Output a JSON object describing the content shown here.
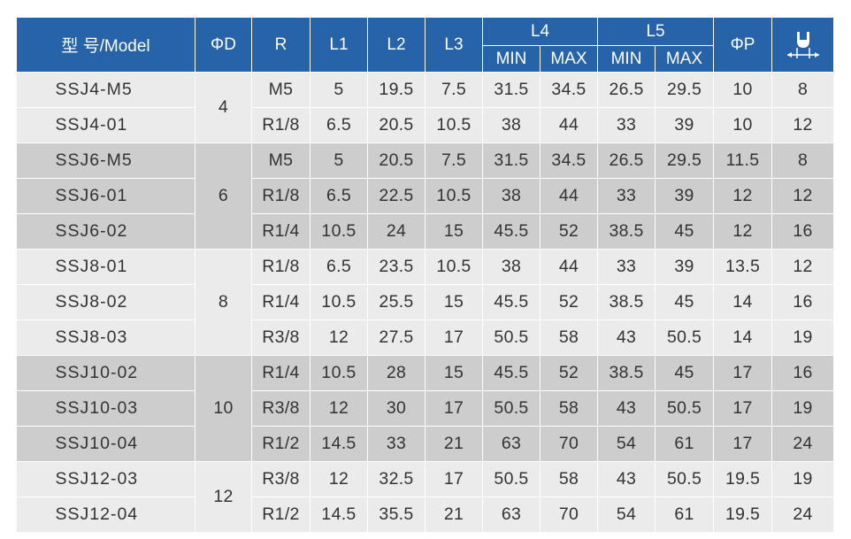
{
  "header": {
    "model": "型 号/Model",
    "phi_d": "ΦD",
    "r": "R",
    "l1": "L1",
    "l2": "L2",
    "l3": "L3",
    "l4": "L4",
    "l5": "L5",
    "phi_p": "ΦP",
    "min": "MIN",
    "max": "MAX",
    "hex_icon": "wrench-width-icon"
  },
  "groups": [
    {
      "phi_d": "4",
      "shade": "light",
      "rows": [
        {
          "model": "SSJ4-M5",
          "r": "M5",
          "l1": "5",
          "l2": "19.5",
          "l3": "7.5",
          "l4_min": "31.5",
          "l4_max": "34.5",
          "l5_min": "26.5",
          "l5_max": "29.5",
          "phi_p": "10",
          "hex": "8"
        },
        {
          "model": "SSJ4-01",
          "r": "R1/8",
          "l1": "6.5",
          "l2": "20.5",
          "l3": "10.5",
          "l4_min": "38",
          "l4_max": "44",
          "l5_min": "33",
          "l5_max": "39",
          "phi_p": "10",
          "hex": "12"
        }
      ]
    },
    {
      "phi_d": "6",
      "shade": "dark",
      "rows": [
        {
          "model": "SSJ6-M5",
          "r": "M5",
          "l1": "5",
          "l2": "20.5",
          "l3": "7.5",
          "l4_min": "31.5",
          "l4_max": "34.5",
          "l5_min": "26.5",
          "l5_max": "29.5",
          "phi_p": "11.5",
          "hex": "8"
        },
        {
          "model": "SSJ6-01",
          "r": "R1/8",
          "l1": "6.5",
          "l2": "22.5",
          "l3": "10.5",
          "l4_min": "38",
          "l4_max": "44",
          "l5_min": "33",
          "l5_max": "39",
          "phi_p": "12",
          "hex": "12"
        },
        {
          "model": "SSJ6-02",
          "r": "R1/4",
          "l1": "10.5",
          "l2": "24",
          "l3": "15",
          "l4_min": "45.5",
          "l4_max": "52",
          "l5_min": "38.5",
          "l5_max": "45",
          "phi_p": "12",
          "hex": "16"
        }
      ]
    },
    {
      "phi_d": "8",
      "shade": "light",
      "rows": [
        {
          "model": "SSJ8-01",
          "r": "R1/8",
          "l1": "6.5",
          "l2": "23.5",
          "l3": "10.5",
          "l4_min": "38",
          "l4_max": "44",
          "l5_min": "33",
          "l5_max": "39",
          "phi_p": "13.5",
          "hex": "12"
        },
        {
          "model": "SSJ8-02",
          "r": "R1/4",
          "l1": "10.5",
          "l2": "25.5",
          "l3": "15",
          "l4_min": "45.5",
          "l4_max": "52",
          "l5_min": "38.5",
          "l5_max": "45",
          "phi_p": "14",
          "hex": "16"
        },
        {
          "model": "SSJ8-03",
          "r": "R3/8",
          "l1": "12",
          "l2": "27.5",
          "l3": "17",
          "l4_min": "50.5",
          "l4_max": "58",
          "l5_min": "43",
          "l5_max": "50.5",
          "phi_p": "14",
          "hex": "19"
        }
      ]
    },
    {
      "phi_d": "10",
      "shade": "dark",
      "rows": [
        {
          "model": "SSJ10-02",
          "r": "R1/4",
          "l1": "10.5",
          "l2": "28",
          "l3": "15",
          "l4_min": "45.5",
          "l4_max": "52",
          "l5_min": "38.5",
          "l5_max": "45",
          "phi_p": "17",
          "hex": "16"
        },
        {
          "model": "SSJ10-03",
          "r": "R3/8",
          "l1": "12",
          "l2": "30",
          "l3": "17",
          "l4_min": "50.5",
          "l4_max": "58",
          "l5_min": "43",
          "l5_max": "50.5",
          "phi_p": "17",
          "hex": "19"
        },
        {
          "model": "SSJ10-04",
          "r": "R1/2",
          "l1": "14.5",
          "l2": "33",
          "l3": "21",
          "l4_min": "63",
          "l4_max": "70",
          "l5_min": "54",
          "l5_max": "61",
          "phi_p": "17",
          "hex": "24"
        }
      ]
    },
    {
      "phi_d": "12",
      "shade": "light",
      "rows": [
        {
          "model": "SSJ12-03",
          "r": "R3/8",
          "l1": "12",
          "l2": "32.5",
          "l3": "17",
          "l4_min": "50.5",
          "l4_max": "58",
          "l5_min": "43",
          "l5_max": "50.5",
          "phi_p": "19.5",
          "hex": "19"
        },
        {
          "model": "SSJ12-04",
          "r": "R1/2",
          "l1": "14.5",
          "l2": "35.5",
          "l3": "21",
          "l4_min": "63",
          "l4_max": "70",
          "l5_min": "54",
          "l5_max": "61",
          "phi_p": "19.5",
          "hex": "24"
        }
      ]
    }
  ]
}
